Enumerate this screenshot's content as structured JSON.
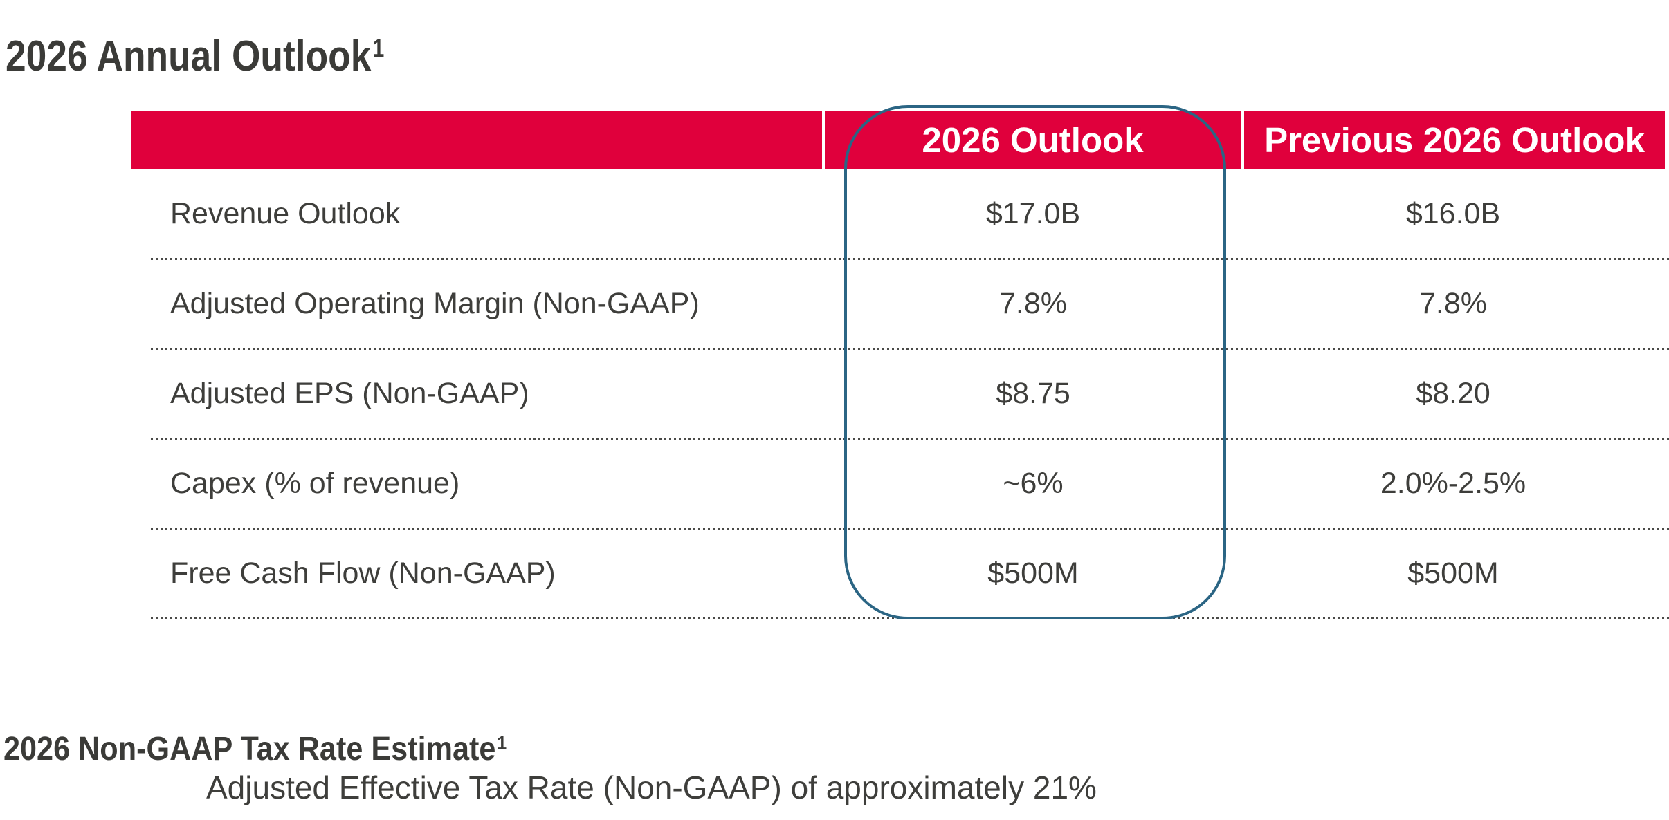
{
  "slide": {
    "title": "2026 Annual Outlook",
    "title_superscript": "1"
  },
  "table": {
    "columns": [
      "",
      "2026 Outlook",
      "Previous 2026 Outlook"
    ],
    "rows": [
      {
        "label": "Revenue Outlook",
        "outlook": "$17.0B",
        "previous": "$16.0B"
      },
      {
        "label": "Adjusted Operating Margin (Non-GAAP)",
        "outlook": "7.8%",
        "previous": "7.8%"
      },
      {
        "label": "Adjusted EPS (Non-GAAP)",
        "outlook": "$8.75",
        "previous": "$8.20"
      },
      {
        "label": "Capex (% of revenue)",
        "outlook": "~6%",
        "previous": "2.0%-2.5%"
      },
      {
        "label": "Free Cash Flow (Non-GAAP)",
        "outlook": "$500M",
        "previous": "$500M"
      }
    ],
    "highlighted_column": "2026 Outlook"
  },
  "tax_rate": {
    "heading": "2026 Non-GAAP Tax Rate Estimate",
    "heading_superscript": "1",
    "detail": "Adjusted Effective Tax Rate (Non-GAAP) of approximately 21%"
  },
  "colors": {
    "header_red": "#e0003c",
    "highlight_blue": "#2b6584",
    "text_dark": "#3b3b38"
  }
}
